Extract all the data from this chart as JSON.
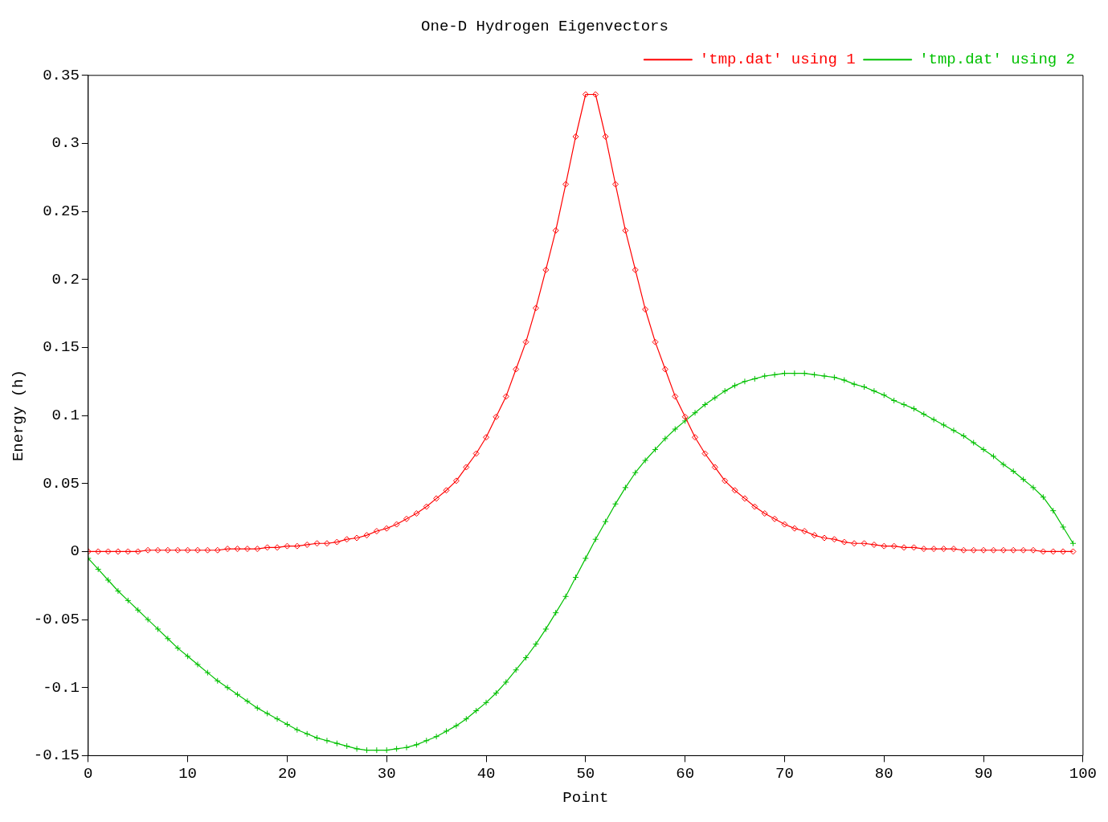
{
  "chart_data": {
    "type": "line",
    "title": "One-D Hydrogen Eigenvectors",
    "xlabel": "Point",
    "ylabel": "Energy (h)",
    "x": [
      0,
      1,
      2,
      3,
      4,
      5,
      6,
      7,
      8,
      9,
      10,
      11,
      12,
      13,
      14,
      15,
      16,
      17,
      18,
      19,
      20,
      21,
      22,
      23,
      24,
      25,
      26,
      27,
      28,
      29,
      30,
      31,
      32,
      33,
      34,
      35,
      36,
      37,
      38,
      39,
      40,
      41,
      42,
      43,
      44,
      45,
      46,
      47,
      48,
      49,
      50,
      51,
      52,
      53,
      54,
      55,
      56,
      57,
      58,
      59,
      60,
      61,
      62,
      63,
      64,
      65,
      66,
      67,
      68,
      69,
      70,
      71,
      72,
      73,
      74,
      75,
      76,
      77,
      78,
      79,
      80,
      81,
      82,
      83,
      84,
      85,
      86,
      87,
      88,
      89,
      90,
      91,
      92,
      93,
      94,
      95,
      96,
      97,
      98,
      99
    ],
    "series": [
      {
        "name": "'tmp.dat' using 1",
        "color": "#ff0000",
        "marker": "diamond",
        "values": [
          0.0,
          0.0,
          0.0,
          0.0,
          0.0,
          0.0,
          0.001,
          0.001,
          0.001,
          0.001,
          0.001,
          0.001,
          0.001,
          0.001,
          0.002,
          0.002,
          0.002,
          0.002,
          0.003,
          0.003,
          0.004,
          0.004,
          0.005,
          0.006,
          0.006,
          0.007,
          0.009,
          0.01,
          0.012,
          0.015,
          0.017,
          0.02,
          0.024,
          0.028,
          0.033,
          0.039,
          0.045,
          0.052,
          0.062,
          0.072,
          0.084,
          0.099,
          0.114,
          0.134,
          0.154,
          0.179,
          0.207,
          0.236,
          0.27,
          0.305,
          0.336,
          0.336,
          0.305,
          0.27,
          0.236,
          0.207,
          0.178,
          0.154,
          0.134,
          0.114,
          0.099,
          0.084,
          0.072,
          0.062,
          0.052,
          0.045,
          0.039,
          0.033,
          0.028,
          0.024,
          0.02,
          0.017,
          0.015,
          0.012,
          0.01,
          0.009,
          0.007,
          0.006,
          0.006,
          0.005,
          0.004,
          0.004,
          0.003,
          0.003,
          0.002,
          0.002,
          0.002,
          0.002,
          0.001,
          0.001,
          0.001,
          0.001,
          0.001,
          0.001,
          0.001,
          0.001,
          0.0,
          0.0,
          0.0,
          0.0
        ]
      },
      {
        "name": "'tmp.dat' using 2",
        "color": "#00c000",
        "marker": "cross",
        "values": [
          -0.005,
          -0.013,
          -0.021,
          -0.029,
          -0.036,
          -0.043,
          -0.05,
          -0.057,
          -0.064,
          -0.071,
          -0.077,
          -0.083,
          -0.089,
          -0.095,
          -0.1,
          -0.105,
          -0.11,
          -0.115,
          -0.119,
          -0.123,
          -0.127,
          -0.131,
          -0.134,
          -0.137,
          -0.139,
          -0.141,
          -0.143,
          -0.145,
          -0.146,
          -0.146,
          -0.146,
          -0.145,
          -0.144,
          -0.142,
          -0.139,
          -0.136,
          -0.132,
          -0.128,
          -0.123,
          -0.117,
          -0.111,
          -0.104,
          -0.096,
          -0.087,
          -0.078,
          -0.068,
          -0.057,
          -0.045,
          -0.033,
          -0.019,
          -0.005,
          0.009,
          0.022,
          0.035,
          0.047,
          0.058,
          0.067,
          0.075,
          0.083,
          0.09,
          0.096,
          0.102,
          0.108,
          0.113,
          0.118,
          0.122,
          0.125,
          0.127,
          0.129,
          0.13,
          0.131,
          0.131,
          0.131,
          0.13,
          0.129,
          0.128,
          0.126,
          0.123,
          0.121,
          0.118,
          0.115,
          0.111,
          0.108,
          0.105,
          0.101,
          0.097,
          0.093,
          0.089,
          0.085,
          0.08,
          0.075,
          0.07,
          0.064,
          0.059,
          0.053,
          0.047,
          0.04,
          0.03,
          0.018,
          0.006
        ]
      }
    ],
    "xlim": [
      0,
      100
    ],
    "xticks": [
      0,
      10,
      20,
      30,
      40,
      50,
      60,
      70,
      80,
      90,
      100
    ],
    "ylim": [
      -0.15,
      0.35
    ],
    "yticks": [
      -0.15,
      -0.1,
      -0.05,
      0,
      0.05,
      0.1,
      0.15,
      0.2,
      0.25,
      0.3,
      0.35
    ],
    "grid": false,
    "legend": "top right",
    "line_style": "solid"
  }
}
